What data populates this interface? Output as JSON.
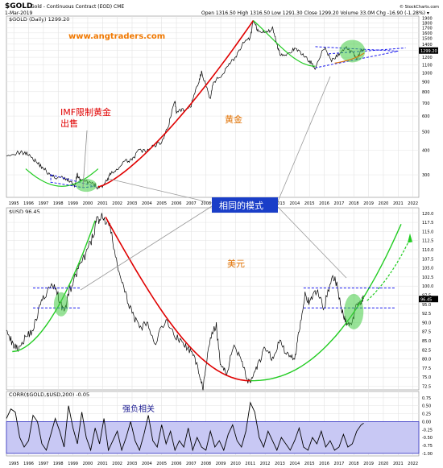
{
  "header": {
    "symbol": "$GOLD",
    "description": "Gold - Continuous Contract (EOD) CME",
    "date": "1-Mar-2019",
    "quote": "Open 1316.50  High 1316.50  Low 1291.30  Close 1299.20  Volume 33.0M  Chg -16.90 (-1.28%) ▾",
    "credit": "© StockCharts.com"
  },
  "watermark": {
    "text": "www.angtraders.com"
  },
  "colors": {
    "price_line": "#000000",
    "red_curve": "#e00000",
    "green_curve": "#22cc22",
    "blue_dash": "#1a1aee",
    "annotation_text": "#e07000",
    "callout_bg": "#1a3ec8",
    "highlight_ellipse": "#44cc44",
    "corr_band": "#c8c8f4"
  },
  "years": [
    "1995",
    "1996",
    "1997",
    "1998",
    "1999",
    "2000",
    "2001",
    "2002",
    "2003",
    "2004",
    "2005",
    "2006",
    "2007",
    "2008",
    "2009",
    "2010",
    "2011",
    "2012",
    "2013",
    "2014",
    "2015",
    "2016",
    "2017",
    "2018",
    "2019",
    "2020",
    "2021",
    "2022"
  ],
  "annotations": {
    "imf_line1": "IMF限制黄金",
    "imf_line2": "出售",
    "gold_label": "黄金",
    "usd_label": "美元",
    "same_pattern": "相同的模式",
    "corr_label": "强负相关"
  },
  "chart_data": [
    {
      "type": "line",
      "panel": "gold",
      "title": "$GOLD (Daily) 1299.20",
      "scale": "log",
      "y_ticks": [
        300,
        400,
        500,
        600,
        700,
        800,
        900,
        1000,
        1100,
        1200,
        1300,
        1400,
        1500,
        1600,
        1700,
        1800,
        1900
      ],
      "ylim": [
        230,
        1950
      ],
      "last_value_label": "1299.20",
      "series": [
        {
          "x": [
            1995.0,
            1996.0,
            1996.5,
            1997.0,
            1997.5,
            1998.0,
            1998.5,
            1999.0,
            1999.3,
            1999.6,
            1999.8,
            2000.0,
            2000.5,
            2001.0,
            2001.3,
            2001.8,
            2002.0,
            2002.5,
            2003.0,
            2003.5,
            2004.0,
            2004.5,
            2005.0,
            2005.5,
            2006.0,
            2006.4,
            2006.5,
            2007.0,
            2007.5,
            2008.0,
            2008.2,
            2008.8,
            2009.0,
            2009.5,
            2010.0,
            2010.5,
            2011.0,
            2011.5,
            2011.7,
            2012.0,
            2012.5,
            2013.0,
            2013.3,
            2013.5,
            2014.0,
            2014.5,
            2015.0,
            2015.5,
            2015.9,
            2016.5,
            2017.0,
            2017.5,
            2018.0,
            2018.5,
            2018.7,
            2019.0,
            2019.17
          ],
          "values": [
            383,
            390,
            385,
            350,
            325,
            295,
            290,
            287,
            280,
            260,
            300,
            280,
            275,
            265,
            255,
            280,
            300,
            320,
            350,
            360,
            400,
            395,
            425,
            440,
            550,
            720,
            620,
            650,
            680,
            890,
            1000,
            730,
            900,
            950,
            1100,
            1200,
            1400,
            1500,
            1850,
            1650,
            1600,
            1680,
            1400,
            1250,
            1250,
            1320,
            1250,
            1150,
            1060,
            1340,
            1150,
            1250,
            1340,
            1250,
            1180,
            1290,
            1299
          ]
        }
      ],
      "overlays": {
        "red_curve_from": 2001.2,
        "red_curve_to": 2011.7,
        "red_curve_dip_from": 2011.7,
        "blue_triangle_x": [
          1998.0,
          2001.0
        ],
        "blue_wedge_x": [
          2015.9,
          2022.0
        ]
      }
    },
    {
      "type": "line",
      "panel": "usd",
      "title": "$USD 96.45",
      "y_ticks": [
        72.5,
        75.0,
        77.5,
        80.0,
        82.5,
        85.0,
        87.5,
        90.0,
        92.5,
        95.0,
        97.5,
        100.0,
        102.5,
        105.0,
        107.5,
        110.0,
        112.5,
        115.0,
        117.5,
        120.0
      ],
      "ylim": [
        71.5,
        121.5
      ],
      "last_value_label": "96.45",
      "series": [
        {
          "x": [
            1995.0,
            1995.4,
            1995.8,
            1996.3,
            1996.8,
            1997.3,
            1997.8,
            1998.3,
            1998.6,
            1998.9,
            1999.3,
            1999.8,
            2000.3,
            2000.8,
            2001.1,
            2001.5,
            2002.0,
            2002.5,
            2003.0,
            2003.5,
            2004.0,
            2004.5,
            2005.0,
            2005.8,
            2006.5,
            2007.0,
            2007.5,
            2008.0,
            2008.3,
            2008.8,
            2009.2,
            2009.5,
            2009.9,
            2010.4,
            2010.9,
            2011.3,
            2011.6,
            2012.0,
            2012.5,
            2013.0,
            2013.5,
            2014.0,
            2014.5,
            2014.8,
            2015.2,
            2015.5,
            2016.0,
            2016.5,
            2017.0,
            2017.3,
            2017.7,
            2018.0,
            2018.3,
            2018.7,
            2019.0,
            2019.17
          ],
          "values": [
            89,
            84,
            83,
            86,
            88,
            95,
            99,
            100,
            96,
            93,
            99,
            104,
            108,
            113,
            118,
            119,
            116,
            106,
            98,
            93,
            88,
            90,
            84,
            91,
            86,
            84,
            82,
            77,
            72,
            86,
            89,
            78,
            76,
            84,
            80,
            74,
            74,
            78,
            83,
            80,
            85,
            81,
            80,
            88,
            98,
            95,
            99,
            94,
            103,
            101,
            93,
            90,
            89,
            95,
            96,
            96.45
          ]
        }
      ],
      "overlays": {
        "red_curve_from": 2001.7,
        "red_curve_to": 2011.5,
        "green_curve_from": 2011.5,
        "green_curve_to": 2021.7,
        "green_dashed_projection_to": 2022.3,
        "blue_dash_levels": [
          99.5,
          94.0
        ]
      }
    },
    {
      "type": "line",
      "panel": "correlation",
      "title": "CORR($GOLD,$USD,200) -0.05",
      "y_ticks": [
        -1.0,
        -0.75,
        -0.5,
        -0.25,
        0.0,
        0.25,
        0.5,
        0.75
      ],
      "ylim": [
        -1.08,
        0.95
      ],
      "shaded_band": [
        -1.0,
        0.0
      ],
      "series": [
        {
          "x": [
            1995.0,
            1995.3,
            1995.6,
            1995.9,
            1996.2,
            1996.5,
            1996.8,
            1997.1,
            1997.4,
            1997.7,
            1998.0,
            1998.3,
            1998.6,
            1998.9,
            1999.2,
            1999.5,
            1999.8,
            2000.1,
            2000.4,
            2000.7,
            2001.0,
            2001.3,
            2001.6,
            2001.9,
            2002.2,
            2002.5,
            2002.8,
            2003.1,
            2003.4,
            2003.7,
            2004.0,
            2004.3,
            2004.6,
            2004.9,
            2005.2,
            2005.5,
            2005.8,
            2006.1,
            2006.4,
            2006.7,
            2007.0,
            2007.3,
            2007.6,
            2007.9,
            2008.2,
            2008.5,
            2008.8,
            2009.1,
            2009.4,
            2009.7,
            2010.0,
            2010.3,
            2010.6,
            2010.9,
            2011.2,
            2011.5,
            2011.8,
            2012.1,
            2012.4,
            2012.7,
            2013.0,
            2013.3,
            2013.6,
            2013.9,
            2014.2,
            2014.5,
            2014.8,
            2015.1,
            2015.4,
            2015.7,
            2016.0,
            2016.3,
            2016.6,
            2016.9,
            2017.2,
            2017.5,
            2017.8,
            2018.1,
            2018.4,
            2018.7,
            2019.0,
            2019.17
          ],
          "values": [
            0.1,
            0.4,
            0.3,
            -0.5,
            -0.8,
            -0.6,
            0.2,
            0.0,
            -0.7,
            -0.9,
            -0.4,
            0.1,
            -0.3,
            -0.8,
            0.5,
            -0.2,
            -0.7,
            0.3,
            -0.5,
            -0.9,
            -0.2,
            -0.7,
            0.1,
            -0.9,
            -0.6,
            -0.3,
            -0.9,
            -0.5,
            0.0,
            -0.6,
            -0.9,
            -0.4,
            0.2,
            -0.6,
            -0.8,
            -0.1,
            -0.7,
            -0.3,
            -0.9,
            -0.6,
            -0.8,
            -0.2,
            -0.9,
            -0.5,
            -0.8,
            -0.9,
            -0.3,
            -0.8,
            -0.6,
            -0.9,
            -0.4,
            -0.1,
            -0.6,
            -0.8,
            -0.3,
            0.6,
            0.3,
            -0.5,
            -0.8,
            -0.3,
            -0.6,
            -0.9,
            -0.5,
            -0.7,
            -0.9,
            -0.6,
            -0.2,
            -0.8,
            -0.9,
            -0.5,
            -0.7,
            -0.3,
            -0.8,
            -0.6,
            -0.9,
            -0.8,
            -0.4,
            -0.8,
            -0.7,
            -0.3,
            -0.1,
            -0.05
          ]
        }
      ]
    }
  ]
}
